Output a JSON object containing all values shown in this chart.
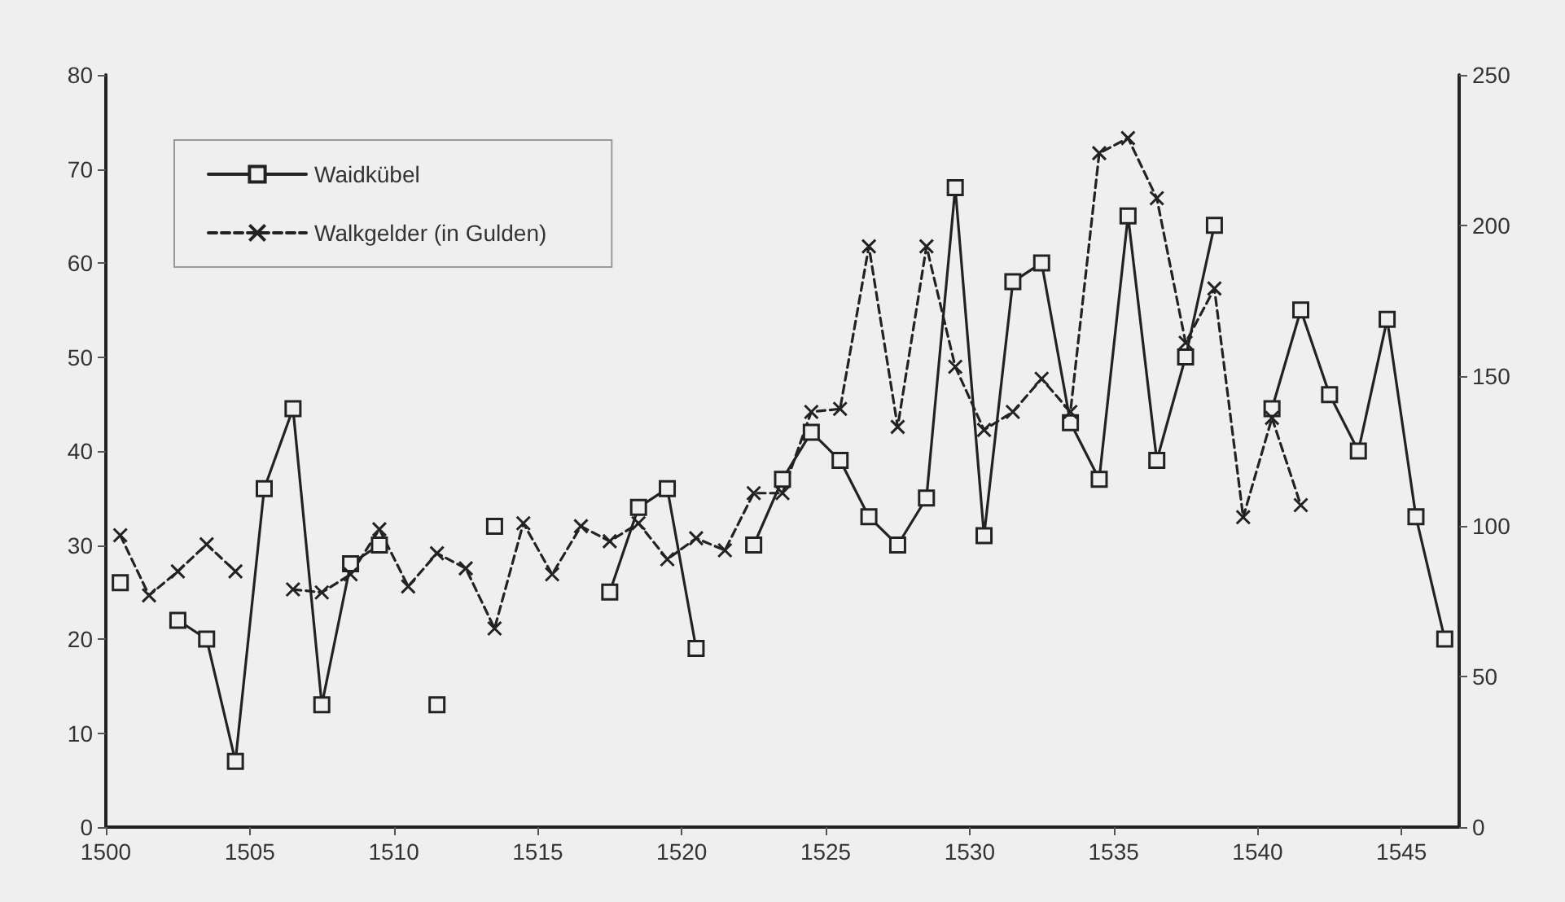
{
  "chart_data": {
    "type": "line",
    "xlim": [
      1500,
      1547
    ],
    "xticks": [
      1500,
      1505,
      1510,
      1515,
      1520,
      1525,
      1530,
      1535,
      1540,
      1545
    ],
    "ylim": [
      0,
      80
    ],
    "yticks": [
      0,
      10,
      20,
      30,
      40,
      50,
      60,
      70,
      80
    ],
    "y2lim": [
      0,
      250
    ],
    "y2ticks": [
      0,
      50,
      100,
      150,
      200,
      250
    ],
    "grid": false,
    "legend": "top left",
    "series": [
      {
        "name": "Waidkübel",
        "color": "#222222",
        "marker": "square",
        "line_style": "solid",
        "x": [
          1500.5,
          1501.5,
          1502.5,
          1503.5,
          1504.5,
          1505.5,
          1506.5,
          1507.5,
          1508.5,
          1509.5,
          1510.5,
          1511.5,
          1512.5,
          1513.5,
          1514.5,
          1515.5,
          1516.5,
          1517.5,
          1518.5,
          1519.5,
          1520.5,
          1521.5,
          1522.5,
          1523.5,
          1524.5,
          1525.5,
          1526.5,
          1527.5,
          1528.5,
          1529.5,
          1530.5,
          1531.5,
          1532.5,
          1533.5,
          1534.5,
          1535.5,
          1536.5,
          1537.5,
          1538.5,
          1539.5,
          1540.5,
          1541.5,
          1542.5,
          1543.5,
          1544.5,
          1545.5,
          1546.5
        ],
        "values": [
          26,
          null,
          22,
          20,
          7,
          36,
          44.5,
          13,
          28,
          30,
          null,
          13,
          null,
          32,
          null,
          null,
          null,
          25,
          34,
          36,
          19,
          null,
          30,
          37,
          42,
          39,
          33,
          30,
          35,
          68,
          31,
          58,
          60,
          43,
          37,
          65,
          39,
          50,
          64,
          null,
          44.5,
          55,
          46,
          40,
          54,
          33,
          20
        ]
      },
      {
        "name": "Walkgelder (in Gulden)",
        "color": "#222222",
        "marker": "cross",
        "line_style": "dashed",
        "axis": "y2",
        "x": [
          1500.5,
          1501.5,
          1502.5,
          1503.5,
          1504.5,
          1505.5,
          1506.5,
          1507.5,
          1508.5,
          1509.5,
          1510.5,
          1511.5,
          1512.5,
          1513.5,
          1514.5,
          1515.5,
          1516.5,
          1517.5,
          1518.5,
          1519.5,
          1520.5,
          1521.5,
          1522.5,
          1523.5,
          1524.5,
          1525.5,
          1526.5,
          1527.5,
          1528.5,
          1529.5,
          1530.5,
          1531.5,
          1532.5,
          1533.5,
          1534.5,
          1535.5,
          1536.5,
          1537.5,
          1538.5,
          1539.5,
          1540.5,
          1541.5
        ],
        "values": [
          97,
          77,
          85,
          94,
          85,
          null,
          79,
          78,
          84,
          99,
          80,
          91,
          86,
          66,
          101,
          84,
          100,
          95,
          101,
          89,
          96,
          92,
          111,
          111,
          138,
          139,
          193,
          133,
          193,
          153,
          132,
          138,
          149,
          138,
          224,
          229,
          209,
          161,
          179,
          103,
          136,
          107
        ]
      }
    ]
  }
}
